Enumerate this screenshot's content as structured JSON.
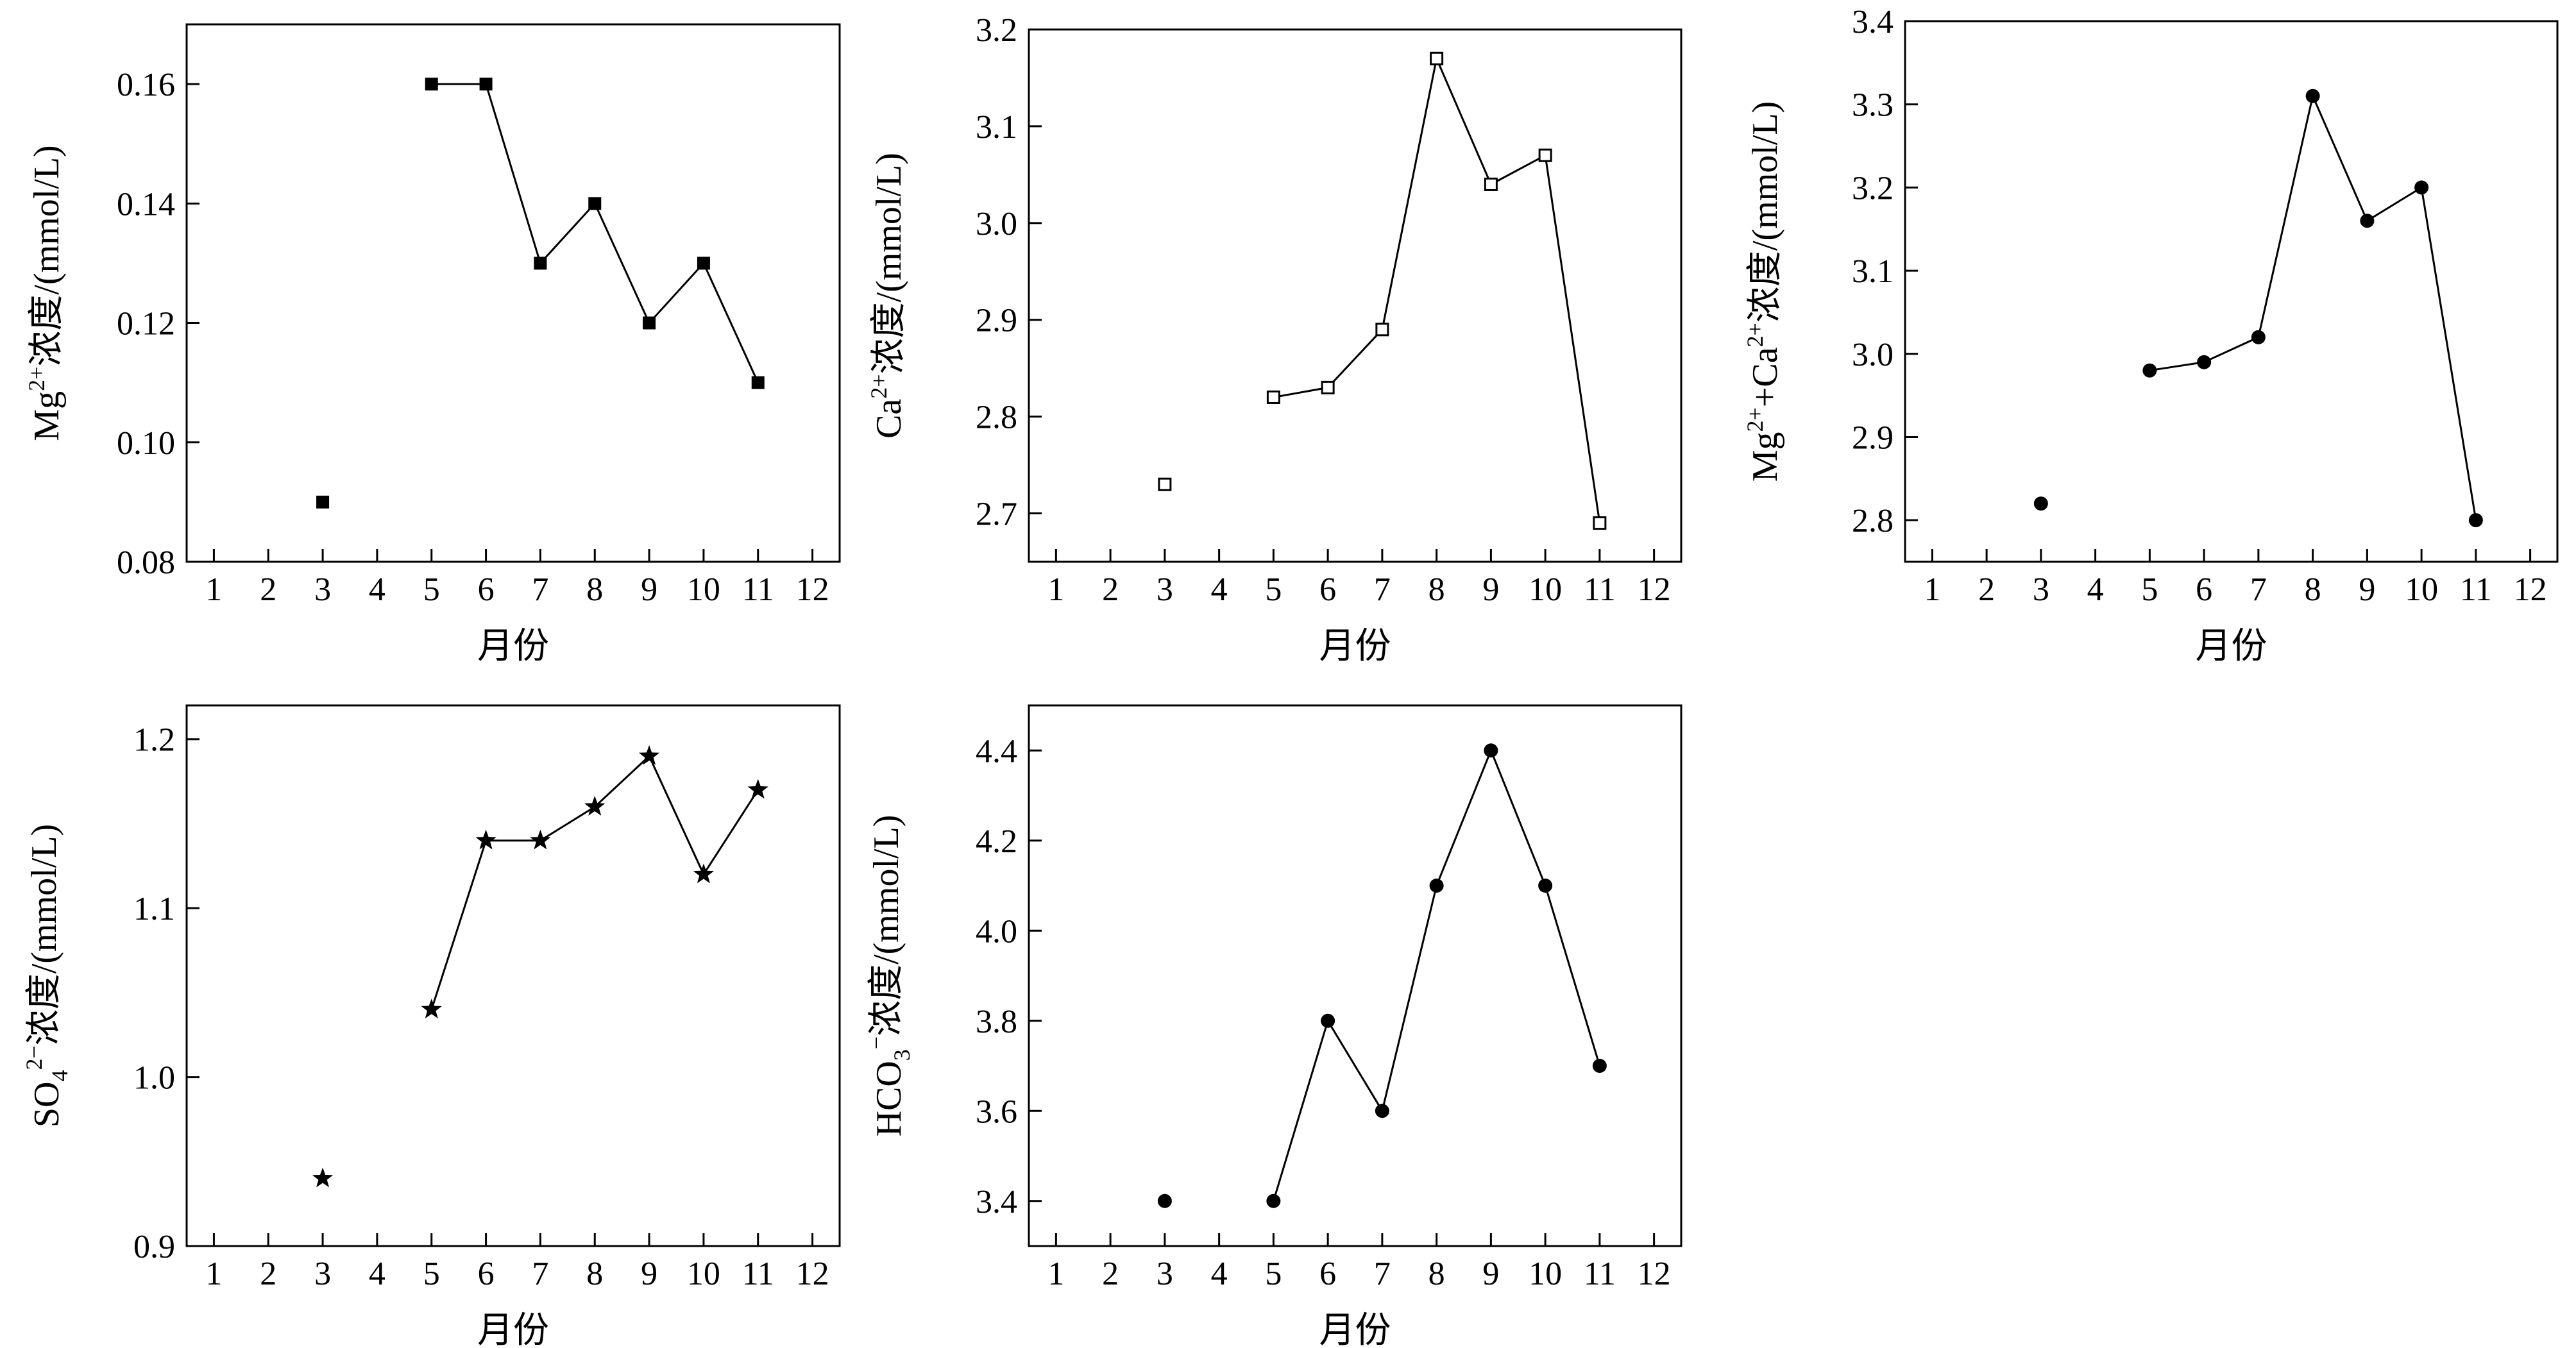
{
  "chart_data": [
    {
      "type": "scatter",
      "marker": "filled-square",
      "ylabel_parts": [
        {
          "t": "Mg",
          "s": "n"
        },
        {
          "t": "2+",
          "s": "sup"
        },
        {
          "t": "浓度/(mmol/L)",
          "s": "n"
        }
      ],
      "xlabel": "月份",
      "xlim": [
        0.5,
        12.5
      ],
      "xticks": [
        1,
        2,
        3,
        4,
        5,
        6,
        7,
        8,
        9,
        10,
        11,
        12
      ],
      "ylim": [
        0.08,
        0.17
      ],
      "yticks": [
        0.08,
        0.1,
        0.12,
        0.14,
        0.16
      ],
      "ytick_labels": [
        "0.08",
        "0.10",
        "0.12",
        "0.14",
        "0.16"
      ],
      "points": [
        [
          3,
          0.09
        ],
        [
          5,
          0.16
        ],
        [
          6,
          0.16
        ],
        [
          7,
          0.13
        ],
        [
          8,
          0.14
        ],
        [
          9,
          0.12
        ],
        [
          10,
          0.13
        ],
        [
          11,
          0.11
        ]
      ],
      "line_from_x": 5
    },
    {
      "type": "scatter",
      "marker": "open-square",
      "ylabel_parts": [
        {
          "t": "Ca",
          "s": "n"
        },
        {
          "t": "2+",
          "s": "sup"
        },
        {
          "t": "浓度/(mmol/L)",
          "s": "n"
        }
      ],
      "xlabel": "月份",
      "xlim": [
        0.5,
        12.5
      ],
      "xticks": [
        1,
        2,
        3,
        4,
        5,
        6,
        7,
        8,
        9,
        10,
        11,
        12
      ],
      "ylim": [
        2.65,
        3.2
      ],
      "yticks": [
        2.7,
        2.8,
        2.9,
        3.0,
        3.1,
        3.2
      ],
      "ytick_labels": [
        "2.7",
        "2.8",
        "2.9",
        "3.0",
        "3.1",
        "3.2"
      ],
      "points": [
        [
          3,
          2.73
        ],
        [
          5,
          2.82
        ],
        [
          6,
          2.83
        ],
        [
          7,
          2.89
        ],
        [
          8,
          3.17
        ],
        [
          9,
          3.04
        ],
        [
          10,
          3.07
        ],
        [
          11,
          2.69
        ]
      ],
      "line_from_x": 5
    },
    {
      "type": "scatter",
      "marker": "filled-circle",
      "ylabel_parts": [
        {
          "t": "Mg",
          "s": "n"
        },
        {
          "t": "2+",
          "s": "sup"
        },
        {
          "t": "+Ca",
          "s": "n"
        },
        {
          "t": "2+",
          "s": "sup"
        },
        {
          "t": "浓度/(mmol/L)",
          "s": "n"
        }
      ],
      "xlabel": "月份",
      "xlim": [
        0.5,
        12.5
      ],
      "xticks": [
        1,
        2,
        3,
        4,
        5,
        6,
        7,
        8,
        9,
        10,
        11,
        12
      ],
      "ylim": [
        2.75,
        3.4
      ],
      "yticks": [
        2.8,
        2.9,
        3.0,
        3.1,
        3.2,
        3.3,
        3.4
      ],
      "ytick_labels": [
        "2.8",
        "2.9",
        "3.0",
        "3.1",
        "3.2",
        "3.3",
        "3.4"
      ],
      "points": [
        [
          3,
          2.82
        ],
        [
          5,
          2.98
        ],
        [
          6,
          2.99
        ],
        [
          7,
          3.02
        ],
        [
          8,
          3.31
        ],
        [
          9,
          3.16
        ],
        [
          10,
          3.2
        ],
        [
          11,
          2.8
        ]
      ],
      "line_from_x": 5
    },
    {
      "type": "scatter",
      "marker": "star",
      "ylabel_parts": [
        {
          "t": "SO",
          "s": "n"
        },
        {
          "t": "4",
          "s": "sub"
        },
        {
          "t": "2−",
          "s": "sup"
        },
        {
          "t": "浓度/(mmol/L)",
          "s": "n"
        }
      ],
      "xlabel": "月份",
      "xlim": [
        0.5,
        12.5
      ],
      "xticks": [
        1,
        2,
        3,
        4,
        5,
        6,
        7,
        8,
        9,
        10,
        11,
        12
      ],
      "ylim": [
        0.9,
        1.22
      ],
      "yticks": [
        0.9,
        1.0,
        1.1,
        1.2
      ],
      "ytick_labels": [
        "0.9",
        "1.0",
        "1.1",
        "1.2"
      ],
      "points": [
        [
          3,
          0.94
        ],
        [
          5,
          1.04
        ],
        [
          6,
          1.14
        ],
        [
          7,
          1.14
        ],
        [
          8,
          1.16
        ],
        [
          9,
          1.19
        ],
        [
          10,
          1.12
        ],
        [
          11,
          1.17
        ]
      ],
      "line_from_x": 5
    },
    {
      "type": "scatter",
      "marker": "filled-circle",
      "ylabel_parts": [
        {
          "t": "HCO",
          "s": "n"
        },
        {
          "t": "3",
          "s": "sub"
        },
        {
          "t": "−",
          "s": "sup"
        },
        {
          "t": "浓度/(mmol/L)",
          "s": "n"
        }
      ],
      "xlabel": "月份",
      "xlim": [
        0.5,
        12.5
      ],
      "xticks": [
        1,
        2,
        3,
        4,
        5,
        6,
        7,
        8,
        9,
        10,
        11,
        12
      ],
      "ylim": [
        3.3,
        4.5
      ],
      "yticks": [
        3.4,
        3.6,
        3.8,
        4.0,
        4.2,
        4.4
      ],
      "ytick_labels": [
        "3.4",
        "3.6",
        "3.8",
        "4.0",
        "4.2",
        "4.4"
      ],
      "points": [
        [
          3,
          3.4
        ],
        [
          5,
          3.4
        ],
        [
          6,
          3.8
        ],
        [
          7,
          3.6
        ],
        [
          8,
          4.1
        ],
        [
          9,
          4.4
        ],
        [
          10,
          4.1
        ],
        [
          11,
          3.7
        ]
      ],
      "line_from_x": 5
    }
  ]
}
